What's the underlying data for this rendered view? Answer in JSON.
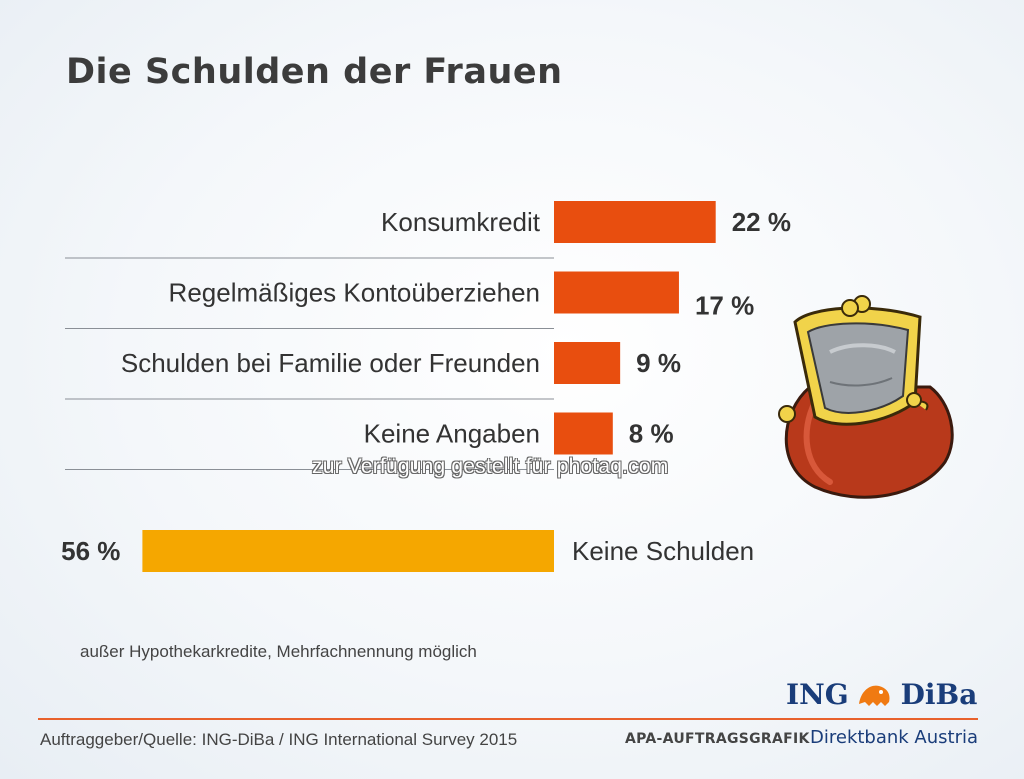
{
  "title": "Die Schulden der Frauen",
  "chart_data": [
    {
      "type": "bar",
      "orientation": "horizontal",
      "categories": [
        "Konsumkredit",
        "Regelmäßiges Kontoüberziehen",
        "Schulden bei Familie oder Freunden",
        "Keine Angaben"
      ],
      "values": [
        22,
        17,
        9,
        8
      ],
      "value_labels": [
        "22 %",
        "17 %",
        "9 %",
        "8 %"
      ],
      "unit": "%",
      "color": "#e84e0f",
      "xlim": [
        0,
        60
      ]
    },
    {
      "type": "bar",
      "orientation": "horizontal",
      "direction": "right-to-left",
      "categories": [
        "Keine Schulden"
      ],
      "values": [
        56
      ],
      "value_labels": [
        "56 %"
      ],
      "unit": "%",
      "color": "#f5a700",
      "xlim": [
        0,
        60
      ]
    }
  ],
  "watermark": "zur Verfügung gestellt für photaq.com",
  "footnote": "außer Hypothekarkredite, Mehrfachnennung möglich",
  "source": "Auftraggeber/Quelle: ING-DiBa / ING International Survey 2015",
  "apa_label": "APA-AUFTRAGSGRAFIK",
  "logo": {
    "left": "ING",
    "right": "DiBa",
    "icon": "lion-icon"
  },
  "tagline": "Direktbank Austria",
  "illustration": "purse-icon",
  "colors": {
    "accent": "#e84e0f",
    "secondary": "#f5a700",
    "brand": "#1a3d7a"
  }
}
